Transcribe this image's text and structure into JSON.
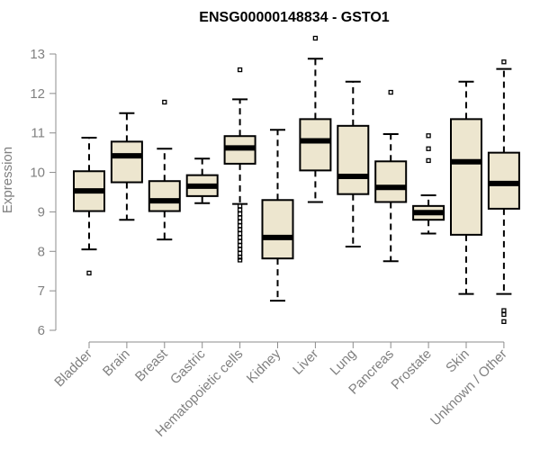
{
  "chart_data": {
    "type": "boxplot",
    "title": "ENSG00000148834 - GSTO1",
    "xlabel": "",
    "ylabel": "Expression",
    "ylim": [
      6,
      13
    ],
    "yticks": [
      6,
      7,
      8,
      9,
      10,
      11,
      12,
      13
    ],
    "box_fill": "#ede6cf",
    "categories": [
      "Bladder",
      "Brain",
      "Breast",
      "Gastric",
      "Hematopoietic cells",
      "Kidney",
      "Liver",
      "Lung",
      "Pancreas",
      "Prostate",
      "Skin",
      "Unknown / Other"
    ],
    "series": [
      {
        "name": "Bladder",
        "whisker_low": 8.05,
        "q1": 9.02,
        "median": 9.53,
        "q3": 10.03,
        "whisker_high": 10.88,
        "outliers": [
          7.45
        ]
      },
      {
        "name": "Brain",
        "whisker_low": 8.8,
        "q1": 9.75,
        "median": 10.42,
        "q3": 10.78,
        "whisker_high": 11.5,
        "outliers": []
      },
      {
        "name": "Breast",
        "whisker_low": 8.3,
        "q1": 9.02,
        "median": 9.28,
        "q3": 9.78,
        "whisker_high": 10.6,
        "outliers": [
          11.78
        ]
      },
      {
        "name": "Gastric",
        "whisker_low": 9.22,
        "q1": 9.4,
        "median": 9.65,
        "q3": 9.93,
        "whisker_high": 10.35,
        "outliers": []
      },
      {
        "name": "Hematopoietic cells",
        "whisker_low": 9.2,
        "q1": 10.22,
        "median": 10.62,
        "q3": 10.92,
        "whisker_high": 11.85,
        "outliers": [
          12.6,
          9.15,
          9.05,
          8.95,
          8.85,
          8.75,
          8.65,
          8.55,
          8.45,
          8.35,
          8.25,
          8.15,
          8.05,
          7.95,
          7.85,
          7.78
        ]
      },
      {
        "name": "Kidney",
        "whisker_low": 6.75,
        "q1": 7.82,
        "median": 8.35,
        "q3": 9.3,
        "whisker_high": 11.08,
        "outliers": []
      },
      {
        "name": "Liver",
        "whisker_low": 9.25,
        "q1": 10.05,
        "median": 10.8,
        "q3": 11.35,
        "whisker_high": 12.88,
        "outliers": [
          13.4
        ]
      },
      {
        "name": "Lung",
        "whisker_low": 8.12,
        "q1": 9.45,
        "median": 9.9,
        "q3": 11.18,
        "whisker_high": 12.3,
        "outliers": []
      },
      {
        "name": "Pancreas",
        "whisker_low": 7.75,
        "q1": 9.25,
        "median": 9.62,
        "q3": 10.28,
        "whisker_high": 10.97,
        "outliers": [
          12.03
        ]
      },
      {
        "name": "Prostate",
        "whisker_low": 8.45,
        "q1": 8.8,
        "median": 8.98,
        "q3": 9.15,
        "whisker_high": 9.42,
        "outliers": [
          10.93,
          10.6,
          10.3
        ]
      },
      {
        "name": "Skin",
        "whisker_low": 6.92,
        "q1": 8.42,
        "median": 10.27,
        "q3": 11.35,
        "whisker_high": 12.3,
        "outliers": []
      },
      {
        "name": "Unknown / Other",
        "whisker_low": 6.92,
        "q1": 9.08,
        "median": 9.72,
        "q3": 10.5,
        "whisker_high": 12.62,
        "outliers": [
          12.8,
          6.5,
          6.4,
          6.22
        ]
      }
    ]
  }
}
